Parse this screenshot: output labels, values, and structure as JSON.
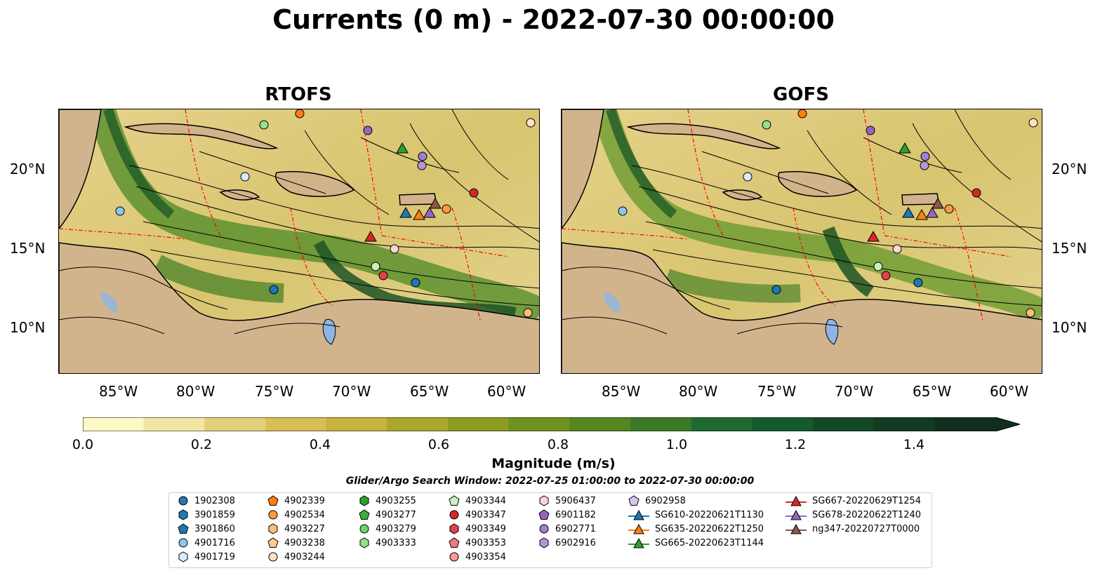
{
  "title": "Currents (0 m) - 2022-07-30 00:00:00",
  "panels": [
    {
      "title": "RTOFS"
    },
    {
      "title": "GOFS"
    }
  ],
  "axes": {
    "lat_labels": [
      "20°N",
      "15°N",
      "10°N"
    ],
    "lon_labels": [
      "85°W",
      "80°W",
      "75°W",
      "70°W",
      "65°W",
      "60°W"
    ]
  },
  "colorbar": {
    "label": "Magnitude (m/s)",
    "ticks": [
      "0.0",
      "0.2",
      "0.4",
      "0.6",
      "0.8",
      "1.0",
      "1.2",
      "1.4"
    ],
    "range": [
      0,
      1.5
    ],
    "extend": "max",
    "colors": [
      "#fdf9c6",
      "#f2e6a2",
      "#e5d07a",
      "#d8bf55",
      "#c6b23c",
      "#a9a72c",
      "#8c9c23",
      "#6f911f",
      "#548622",
      "#3a7a26",
      "#1f6a2e",
      "#145a2c",
      "#124a28",
      "#123b22",
      "#122e1c"
    ]
  },
  "search_window": "Glider/Argo Search Window: 2022-07-25 01:00:00 to 2022-07-30 00:00:00",
  "legend": [
    {
      "label": "1902308",
      "shape": "circle",
      "color": "#1f77b4"
    },
    {
      "label": "3901859",
      "shape": "hexagon",
      "color": "#1f77b4"
    },
    {
      "label": "3901860",
      "shape": "pentagon",
      "color": "#1f77b4"
    },
    {
      "label": "4901716",
      "shape": "circle",
      "color": "#8ec7ee"
    },
    {
      "label": "4901719",
      "shape": "hexagon",
      "color": "#d6ecff"
    },
    {
      "label": "4902339",
      "shape": "pentagon",
      "color": "#ff7f0e"
    },
    {
      "label": "4902534",
      "shape": "circle",
      "color": "#ff9a3c"
    },
    {
      "label": "4903227",
      "shape": "hexagon",
      "color": "#ffbb78"
    },
    {
      "label": "4903238",
      "shape": "pentagon",
      "color": "#ffc896"
    },
    {
      "label": "4903244",
      "shape": "circle",
      "color": "#ffe3c4"
    },
    {
      "label": "4903255",
      "shape": "hexagon",
      "color": "#2ca02c"
    },
    {
      "label": "4903277",
      "shape": "pentagon",
      "color": "#3cae3c"
    },
    {
      "label": "4903279",
      "shape": "circle",
      "color": "#6fd36f"
    },
    {
      "label": "4903333",
      "shape": "hexagon",
      "color": "#98df8a"
    },
    {
      "label": "4903344",
      "shape": "pentagon",
      "color": "#c9f2bd"
    },
    {
      "label": "4903347",
      "shape": "circle",
      "color": "#d62728"
    },
    {
      "label": "4903349",
      "shape": "hexagon",
      "color": "#e0434a"
    },
    {
      "label": "4903353",
      "shape": "pentagon",
      "color": "#f07a7a"
    },
    {
      "label": "4903354",
      "shape": "circle",
      "color": "#ff9896"
    },
    {
      "label": "5906437",
      "shape": "hexagon",
      "color": "#ffd3d2"
    },
    {
      "label": "6901182",
      "shape": "pentagon",
      "color": "#9467bd"
    },
    {
      "label": "6902771",
      "shape": "circle",
      "color": "#9f7fd0"
    },
    {
      "label": "6902916",
      "shape": "hexagon",
      "color": "#b794d9"
    },
    {
      "label": "6902958",
      "shape": "pentagon",
      "color": "#d9c6ef"
    },
    {
      "label": "SG610-20220621T1130",
      "shape": "triangle-line",
      "color": "#1f77b4"
    },
    {
      "label": "SG635-20220622T1250",
      "shape": "triangle-line",
      "color": "#ff7f0e"
    },
    {
      "label": "SG665-20220623T1144",
      "shape": "triangle-line",
      "color": "#2ca02c"
    },
    {
      "label": "SG667-20220629T1254",
      "shape": "triangle-line",
      "color": "#d62728"
    },
    {
      "label": "SG678-20220622T1240",
      "shape": "triangle-line",
      "color": "#9467bd"
    },
    {
      "label": "ng347-20220727T0000",
      "shape": "triangle-line",
      "color": "#8c564b"
    }
  ],
  "land_color": "#d2b48c",
  "lake_color": "#8fb4e3",
  "eez_color": "#ff0000"
}
